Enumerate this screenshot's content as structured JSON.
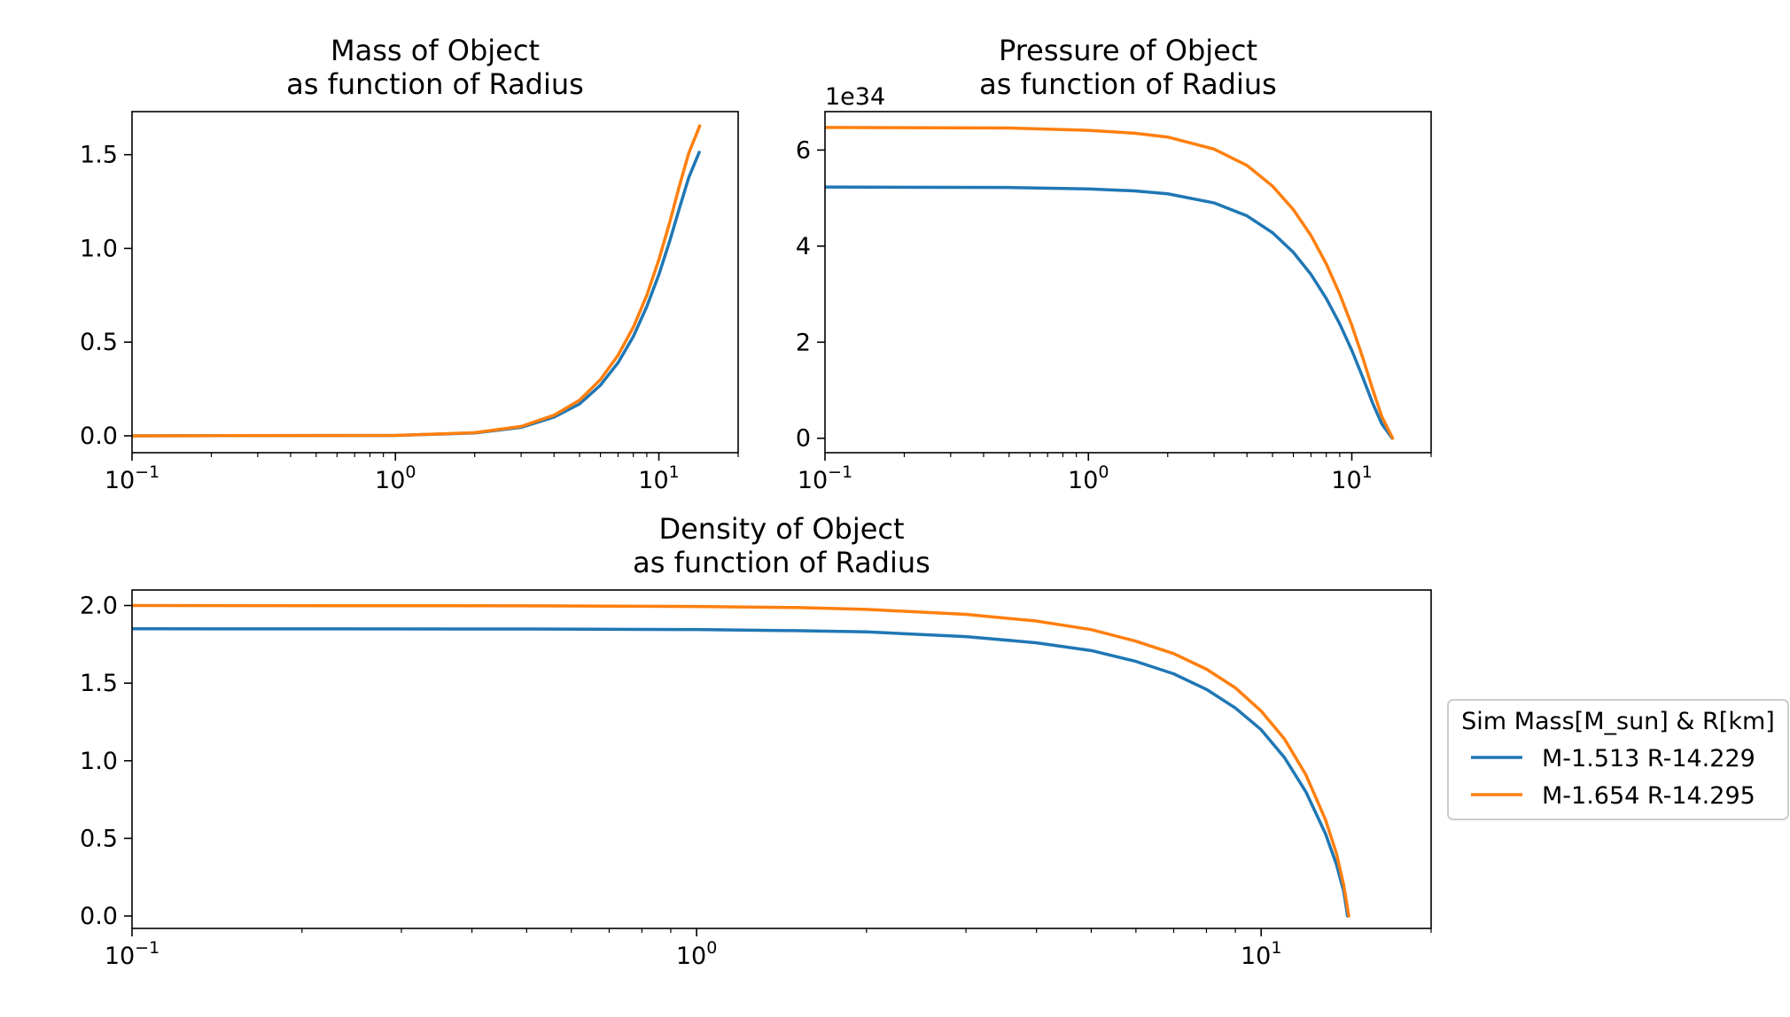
{
  "figure": {
    "legend": {
      "title": "Sim Mass[M_sun] & R[km]",
      "entries": [
        "M-1.513 R-14.229",
        "M-1.654 R-14.295"
      ],
      "placement": "right"
    }
  },
  "colors": {
    "series_1": "#1f77b4",
    "series_2": "#ff7f0e"
  },
  "chart_data": [
    {
      "type": "line",
      "title": "Mass of Object\nas function of Radius",
      "title_lines": [
        "Mass of Object",
        "as function of Radius"
      ],
      "x_scale": "log",
      "xlim": [
        0.1,
        20
      ],
      "ylim": [
        -0.09,
        1.73
      ],
      "x_ticks": [
        {
          "value": 0.1,
          "base": "10",
          "exp": "−1"
        },
        {
          "value": 1,
          "base": "10",
          "exp": "0"
        },
        {
          "value": 10,
          "base": "10",
          "exp": "1"
        }
      ],
      "y_ticks": [
        {
          "value": 0,
          "label": "0.0"
        },
        {
          "value": 0.5,
          "label": "0.5"
        },
        {
          "value": 1.0,
          "label": "1.0"
        },
        {
          "value": 1.5,
          "label": "1.5"
        }
      ],
      "series": [
        {
          "name": "M-1.513 R-14.229",
          "x": [
            0.1,
            1,
            2,
            3,
            4,
            5,
            6,
            7,
            8,
            9,
            10,
            11,
            12,
            13,
            14.229
          ],
          "y": [
            0.0,
            0.002,
            0.015,
            0.045,
            0.1,
            0.17,
            0.27,
            0.39,
            0.53,
            0.69,
            0.86,
            1.04,
            1.22,
            1.38,
            1.513
          ]
        },
        {
          "name": "M-1.654 R-14.295",
          "x": [
            0.1,
            1,
            2,
            3,
            4,
            5,
            6,
            7,
            8,
            9,
            10,
            11,
            12,
            13,
            14.295
          ],
          "y": [
            0.0,
            0.002,
            0.017,
            0.05,
            0.11,
            0.19,
            0.3,
            0.43,
            0.58,
            0.75,
            0.94,
            1.14,
            1.34,
            1.51,
            1.654
          ]
        }
      ]
    },
    {
      "type": "line",
      "title": "Pressure of Object\nas function of Radius",
      "title_lines": [
        "Pressure of Object",
        "as function of Radius"
      ],
      "x_scale": "log",
      "y_offset_label": "1e34",
      "xlim": [
        0.1,
        20
      ],
      "ylim": [
        -0.3,
        6.8
      ],
      "x_ticks": [
        {
          "value": 0.1,
          "base": "10",
          "exp": "−1"
        },
        {
          "value": 1,
          "base": "10",
          "exp": "0"
        },
        {
          "value": 10,
          "base": "10",
          "exp": "1"
        }
      ],
      "y_ticks": [
        {
          "value": 0,
          "label": "0"
        },
        {
          "value": 2,
          "label": "2"
        },
        {
          "value": 4,
          "label": "4"
        },
        {
          "value": 6,
          "label": "6"
        }
      ],
      "series": [
        {
          "name": "M-1.513 R-14.229",
          "x": [
            0.1,
            0.5,
            1,
            1.5,
            2,
            3,
            4,
            5,
            6,
            7,
            8,
            9,
            10,
            11,
            12,
            13,
            14.229
          ],
          "y": [
            5.23,
            5.22,
            5.19,
            5.15,
            5.09,
            4.9,
            4.63,
            4.28,
            3.87,
            3.41,
            2.91,
            2.38,
            1.83,
            1.27,
            0.73,
            0.3,
            0.0
          ]
        },
        {
          "name": "M-1.654 R-14.295",
          "x": [
            0.1,
            0.5,
            1,
            1.5,
            2,
            3,
            4,
            5,
            6,
            7,
            8,
            9,
            10,
            11,
            12,
            13,
            14.295
          ],
          "y": [
            6.47,
            6.46,
            6.41,
            6.35,
            6.27,
            6.02,
            5.68,
            5.25,
            4.76,
            4.22,
            3.63,
            3.0,
            2.35,
            1.68,
            1.02,
            0.45,
            0.0
          ]
        }
      ]
    },
    {
      "type": "line",
      "title": "Density of Object\nas function of Radius",
      "title_lines": [
        "Density of Object",
        "as function of Radius"
      ],
      "x_scale": "log",
      "xlim": [
        0.1,
        20
      ],
      "ylim": [
        -0.08,
        2.1
      ],
      "x_ticks": [
        {
          "value": 0.1,
          "base": "10",
          "exp": "−1"
        },
        {
          "value": 1,
          "base": "10",
          "exp": "0"
        },
        {
          "value": 10,
          "base": "10",
          "exp": "1"
        }
      ],
      "y_ticks": [
        {
          "value": 0,
          "label": "0.0"
        },
        {
          "value": 0.5,
          "label": "0.5"
        },
        {
          "value": 1.0,
          "label": "1.0"
        },
        {
          "value": 1.5,
          "label": "1.5"
        },
        {
          "value": 2.0,
          "label": "2.0"
        }
      ],
      "series": [
        {
          "name": "M-1.513 R-14.229",
          "x": [
            0.1,
            0.5,
            1,
            1.5,
            2,
            3,
            4,
            5,
            6,
            7,
            8,
            9,
            10,
            11,
            12,
            13,
            13.6,
            14.0,
            14.229
          ],
          "y": [
            1.85,
            1.849,
            1.845,
            1.838,
            1.83,
            1.8,
            1.76,
            1.71,
            1.64,
            1.56,
            1.46,
            1.34,
            1.2,
            1.02,
            0.8,
            0.53,
            0.33,
            0.16,
            0.0
          ]
        },
        {
          "name": "M-1.654 R-14.295",
          "x": [
            0.1,
            0.5,
            1,
            1.5,
            2,
            3,
            4,
            5,
            6,
            7,
            8,
            9,
            10,
            11,
            12,
            13,
            13.6,
            14.0,
            14.295
          ],
          "y": [
            2.0,
            1.998,
            1.994,
            1.987,
            1.975,
            1.943,
            1.9,
            1.845,
            1.77,
            1.69,
            1.59,
            1.47,
            1.32,
            1.14,
            0.91,
            0.62,
            0.4,
            0.2,
            0.0
          ]
        }
      ]
    }
  ]
}
